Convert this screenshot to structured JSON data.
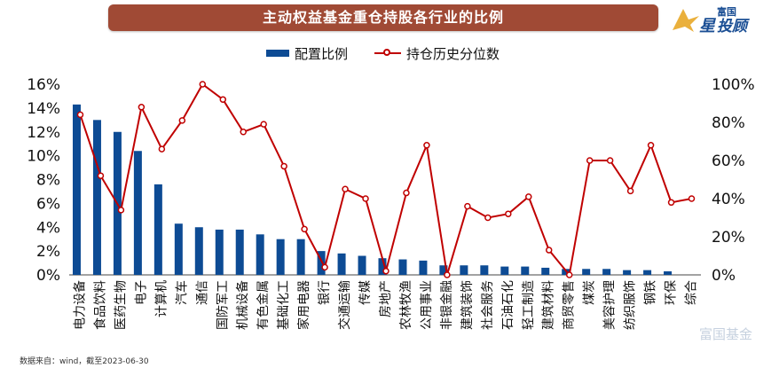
{
  "header": {
    "title": "主动权益基金重仓持股各行业的比例"
  },
  "logo": {
    "line1": "富国",
    "line2a": "星",
    "line2b": "投顾"
  },
  "watermark": "富国基金",
  "source": "数据来自：wind，截至2023-06-30",
  "chart_data": {
    "type": "bar",
    "title": "主动权益基金重仓持股各行业的比例",
    "categories": [
      "电力设备",
      "食品饮料",
      "医药生物",
      "电子",
      "计算机",
      "汽车",
      "通信",
      "国防军工",
      "机械设备",
      "有色金属",
      "基础化工",
      "家用电器",
      "银行",
      "交通运输",
      "传媒",
      "房地产",
      "农林牧渔",
      "公用事业",
      "非银金融",
      "建筑装饰",
      "社会服务",
      "石油石化",
      "轻工制造",
      "建筑材料",
      "商贸零售",
      "煤炭",
      "美容护理",
      "纺织服饰",
      "钢铁",
      "环保",
      "综合"
    ],
    "series": [
      {
        "name": "配置比例",
        "type": "bar",
        "axis": "left",
        "color": "#0d4b94",
        "values": [
          14.3,
          13.0,
          12.0,
          10.4,
          7.6,
          4.3,
          4.0,
          3.8,
          3.8,
          3.4,
          3.0,
          3.0,
          2.0,
          1.8,
          1.6,
          1.4,
          1.3,
          1.2,
          0.8,
          0.8,
          0.8,
          0.7,
          0.7,
          0.6,
          0.5,
          0.5,
          0.5,
          0.4,
          0.4,
          0.3,
          0.0
        ]
      },
      {
        "name": "持仓历史分位数",
        "type": "line",
        "axis": "right",
        "color": "#c00000",
        "values": [
          84,
          52,
          34,
          88,
          66,
          81,
          100,
          92,
          75,
          79,
          57,
          24,
          4,
          45,
          40,
          2,
          43,
          68,
          0,
          36,
          30,
          32,
          41,
          13,
          0,
          60,
          60,
          44,
          68,
          38,
          40
        ]
      }
    ],
    "y_left": {
      "min": 0,
      "max": 16,
      "ticks": [
        "0%",
        "2%",
        "4%",
        "6%",
        "8%",
        "10%",
        "12%",
        "14%",
        "16%"
      ]
    },
    "y_right": {
      "min": 0,
      "max": 100,
      "ticks": [
        "0%",
        "20%",
        "40%",
        "60%",
        "80%",
        "100%"
      ]
    },
    "legend": "top-center",
    "grid": false
  }
}
